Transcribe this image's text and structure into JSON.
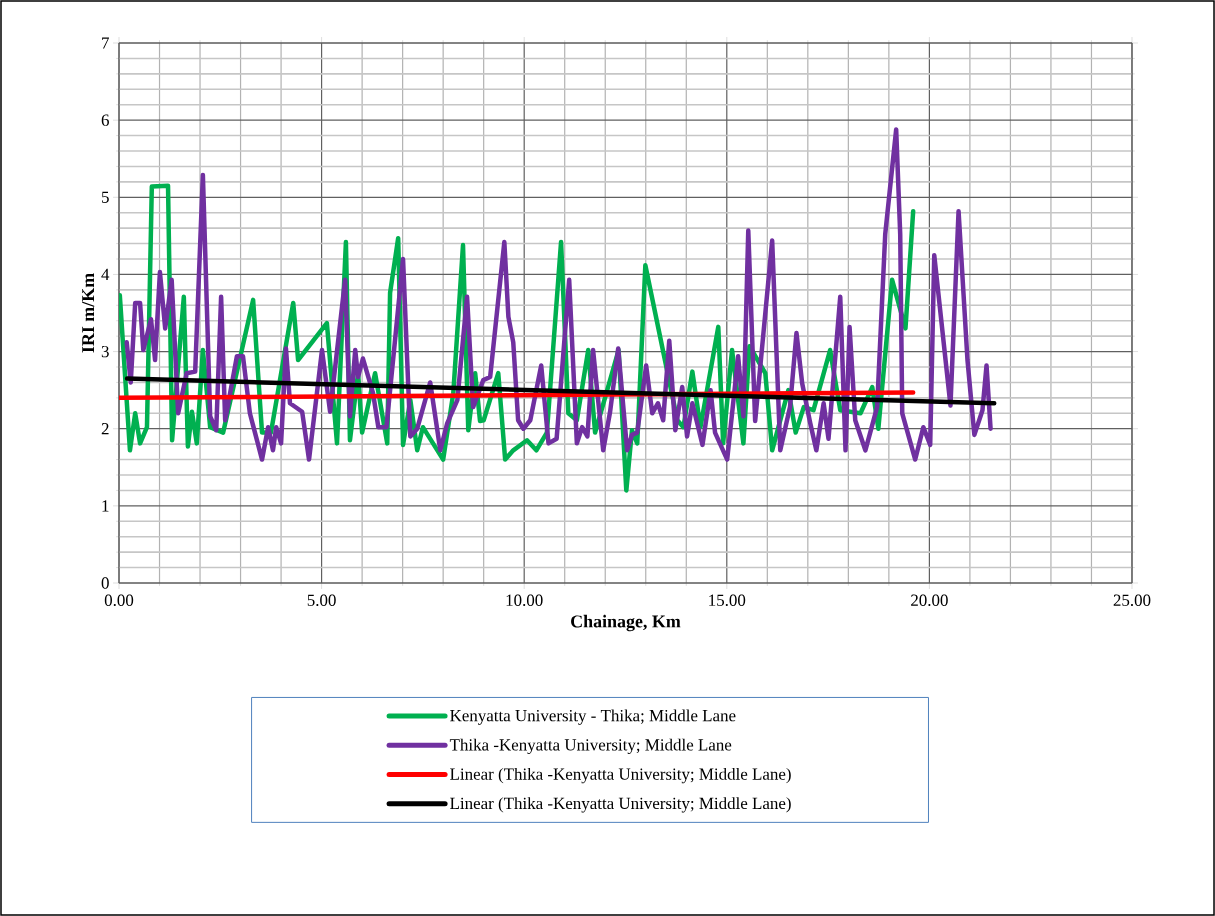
{
  "chart_data": {
    "type": "line",
    "xlabel": "Chainage, Km",
    "ylabel": "IRI m/Km",
    "xlim": [
      0,
      25
    ],
    "ylim": [
      0,
      7
    ],
    "xticks": [
      {
        "value": 0,
        "label": "0.00"
      },
      {
        "value": 5,
        "label": "5.00"
      },
      {
        "value": 10,
        "label": "10.00"
      },
      {
        "value": 15,
        "label": "15.00"
      },
      {
        "value": 20,
        "label": "20.00"
      },
      {
        "value": 25,
        "label": "25.00"
      }
    ],
    "yticks": [
      0,
      1,
      2,
      3,
      4,
      5,
      6,
      7
    ],
    "grid": true,
    "legend": "bottom",
    "series": [
      {
        "name": "Kenyatta University - Thika;  Middle Lane",
        "color": "#00b050",
        "x": [
          0.02,
          0.27,
          0.4,
          0.52,
          0.69,
          0.81,
          1.21,
          1.31,
          1.6,
          1.7,
          1.8,
          1.92,
          2.07,
          2.25,
          2.57,
          3.31,
          3.53,
          3.75,
          4.3,
          4.42,
          5.13,
          5.38,
          5.6,
          5.7,
          5.9,
          6.0,
          6.32,
          6.62,
          6.69,
          6.89,
          7.01,
          7.19,
          7.36,
          7.5,
          8.0,
          8.25,
          8.49,
          8.62,
          8.79,
          8.91,
          9.0,
          9.36,
          9.53,
          9.73,
          10.07,
          10.3,
          10.56,
          10.91,
          11.09,
          11.3,
          11.58,
          11.75,
          12.33,
          12.52,
          12.66,
          12.79,
          12.99,
          13.78,
          13.93,
          14.15,
          14.35,
          14.79,
          14.91,
          15.13,
          15.41,
          15.56,
          15.95,
          16.12,
          16.52,
          16.7,
          16.9,
          17.14,
          17.55,
          17.8,
          18.3,
          18.59,
          18.74,
          19.08,
          19.41,
          19.6
        ],
        "values": [
          3.73,
          1.72,
          2.2,
          1.81,
          2.02,
          5.14,
          5.15,
          1.85,
          3.71,
          1.77,
          2.22,
          1.81,
          3.02,
          2.02,
          1.95,
          3.67,
          1.95,
          1.95,
          3.63,
          2.89,
          3.37,
          1.81,
          4.42,
          1.85,
          2.72,
          1.95,
          2.72,
          1.81,
          3.76,
          4.47,
          1.79,
          2.37,
          1.72,
          2.02,
          1.6,
          2.46,
          4.38,
          1.98,
          2.72,
          2.1,
          2.11,
          2.72,
          1.6,
          1.72,
          1.85,
          1.72,
          1.95,
          4.42,
          2.2,
          2.11,
          3.02,
          1.95,
          3.02,
          1.2,
          1.98,
          1.81,
          4.12,
          2.11,
          2.02,
          2.74,
          2.02,
          3.32,
          1.81,
          3.02,
          1.81,
          3.07,
          2.72,
          1.72,
          2.5,
          1.95,
          2.28,
          2.24,
          3.02,
          2.24,
          2.2,
          2.54,
          2.0,
          3.93,
          3.3,
          4.82
        ]
      },
      {
        "name": "Thika -Kenyatta University; Middle Lane",
        "color": "#7030a0",
        "x": [
          0.19,
          0.29,
          0.4,
          0.52,
          0.6,
          0.79,
          0.89,
          1.01,
          1.14,
          1.3,
          1.46,
          1.67,
          1.88,
          2.07,
          2.25,
          2.4,
          2.52,
          2.62,
          2.91,
          3.06,
          3.23,
          3.53,
          3.68,
          3.8,
          3.88,
          4.0,
          4.12,
          4.22,
          4.52,
          4.69,
          5.01,
          5.21,
          5.58,
          5.7,
          5.83,
          5.9,
          6.02,
          6.27,
          6.4,
          6.6,
          7.01,
          7.19,
          7.36,
          7.68,
          7.93,
          8.1,
          8.35,
          8.59,
          8.74,
          8.99,
          9.16,
          9.51,
          9.61,
          9.73,
          9.85,
          9.98,
          10.15,
          10.42,
          10.6,
          10.8,
          11.11,
          11.3,
          11.43,
          11.56,
          11.7,
          11.95,
          12.12,
          12.32,
          12.54,
          12.66,
          12.79,
          13.01,
          13.16,
          13.3,
          13.43,
          13.58,
          13.73,
          13.9,
          14.02,
          14.15,
          14.4,
          14.6,
          14.71,
          15.01,
          15.28,
          15.41,
          15.53,
          15.7,
          16.12,
          16.32,
          16.56,
          16.72,
          16.86,
          17.06,
          17.21,
          17.39,
          17.51,
          17.8,
          17.93,
          18.03,
          18.17,
          18.42,
          18.71,
          18.91,
          19.18,
          19.28,
          19.33,
          19.65,
          19.85,
          20.02,
          20.12,
          20.52,
          20.72,
          20.94,
          21.11,
          21.31,
          21.41,
          21.51
        ],
        "values": [
          3.12,
          2.6,
          3.63,
          3.63,
          3.02,
          3.42,
          2.89,
          4.03,
          3.3,
          3.93,
          2.2,
          2.72,
          2.74,
          5.29,
          2.16,
          1.98,
          3.71,
          2.11,
          2.94,
          2.94,
          2.2,
          1.6,
          2.02,
          1.72,
          2.02,
          1.81,
          3.04,
          2.33,
          2.22,
          1.6,
          3.02,
          2.22,
          3.93,
          2.16,
          3.02,
          2.67,
          2.91,
          2.46,
          2.02,
          2.02,
          4.2,
          1.9,
          2.0,
          2.6,
          1.72,
          2.07,
          2.37,
          3.71,
          2.28,
          2.63,
          2.67,
          4.42,
          3.45,
          3.12,
          2.11,
          2.0,
          2.11,
          2.82,
          1.81,
          1.87,
          3.93,
          1.81,
          2.02,
          1.9,
          3.02,
          1.72,
          2.22,
          3.04,
          1.72,
          1.92,
          1.95,
          2.82,
          2.2,
          2.33,
          2.11,
          3.14,
          1.98,
          2.54,
          1.9,
          2.33,
          1.79,
          2.5,
          1.95,
          1.6,
          2.94,
          2.16,
          4.57,
          2.1,
          4.44,
          1.72,
          2.28,
          3.24,
          2.59,
          2.07,
          1.72,
          2.33,
          1.87,
          3.71,
          1.72,
          3.32,
          2.11,
          1.72,
          2.28,
          4.52,
          5.88,
          4.52,
          2.2,
          1.6,
          2.02,
          1.79,
          4.25,
          2.3,
          4.82,
          2.89,
          1.92,
          2.24,
          2.82,
          2.0
        ]
      },
      {
        "name": "Linear (Thika -Kenyatta University; Middle Lane)",
        "color": "#ff0000",
        "x": [
          0,
          19.6
        ],
        "values": [
          2.4,
          2.47
        ]
      },
      {
        "name": "Linear (Thika -Kenyatta University; Middle Lane)",
        "color": "#000000",
        "x": [
          0.2,
          21.6
        ],
        "values": [
          2.65,
          2.33
        ]
      }
    ]
  }
}
